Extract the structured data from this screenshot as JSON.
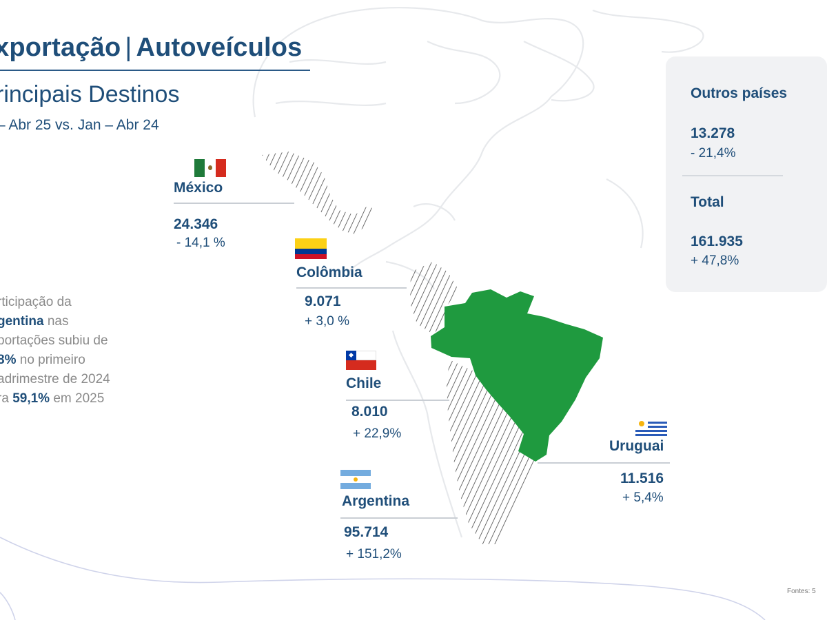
{
  "header": {
    "title_part1": "xportação",
    "title_separator": "|",
    "title_part2": "Autoveículos",
    "subtitle": "rincipais Destinos",
    "period": "– Abr 25 vs. Jan – Abr 24"
  },
  "note": {
    "line1": "rticipação da",
    "line2_bold": "gentina",
    "line2_rest": " nas",
    "line3": "portações subiu de",
    "line4_bold": "8%",
    "line4_rest": " no primeiro",
    "line5": "adrimestre de 2024",
    "line6_pre": "ra ",
    "line6_bold": "59,1%",
    "line6_rest": " em 2025"
  },
  "countries": {
    "mexico": {
      "name": "México",
      "value": "24.346",
      "change": "- 14,1 %"
    },
    "colombia": {
      "name": "Colômbia",
      "value": "9.071",
      "change": "+ 3,0 %"
    },
    "chile": {
      "name": "Chile",
      "value": "8.010",
      "change": "+ 22,9%"
    },
    "argentina": {
      "name": "Argentina",
      "value": "95.714",
      "change": "+ 151,2%"
    },
    "uruguai": {
      "name": "Uruguai",
      "value": "11.516",
      "change": "+ 5,4%"
    }
  },
  "summary": {
    "others_label": "Outros países",
    "others_value": "13.278",
    "others_change": "- 21,4%",
    "total_label": "Total",
    "total_value": "161.935",
    "total_change": "+ 47,8%"
  },
  "source": "Fontes: 5",
  "colors": {
    "brand_blue": "#1f4e79",
    "brazil_green": "#1f9a3f",
    "muted_text": "#8a8a8a",
    "card_bg": "#f1f2f4"
  }
}
